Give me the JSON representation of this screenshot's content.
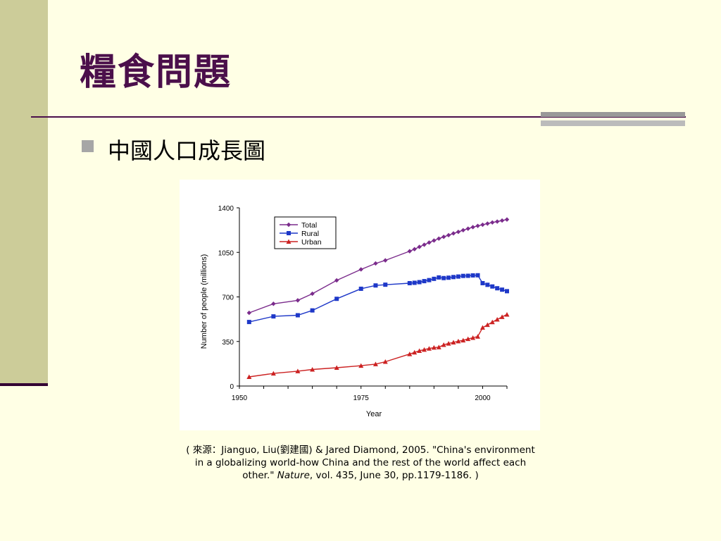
{
  "slide": {
    "title": "糧食問題",
    "bullet": "中國人口成長圖",
    "caption_part1": "( 來源：Jianguo, Liu(劉建國) & Jared Diamond, 2005. \"China's environment in a globalizing world-how China and the rest of the world affect each other.\" ",
    "caption_journal": "Nature",
    "caption_part2": ", vol. 435, June 30, pp.1179-1186. )"
  },
  "colors": {
    "background": "#FFFFE5",
    "side_band": "#CCCC99",
    "title": "#4B0F4B",
    "total": "#7B2C8C",
    "rural": "#1E38C8",
    "urban": "#CC2222"
  },
  "chart_data": {
    "type": "line",
    "xlabel": "Year",
    "ylabel": "Number of people (millions)",
    "xlim": [
      1950,
      2005
    ],
    "ylim": [
      0,
      1400
    ],
    "x_ticks": [
      1950,
      1975,
      2000
    ],
    "y_ticks": [
      0,
      350,
      700,
      1050,
      1400
    ],
    "legend_position": "top-left",
    "series": [
      {
        "name": "Total",
        "marker": "diamond",
        "points": [
          [
            1952,
            575
          ],
          [
            1957,
            646
          ],
          [
            1962,
            673
          ],
          [
            1965,
            725
          ],
          [
            1970,
            830
          ],
          [
            1975,
            916
          ],
          [
            1978,
            963
          ],
          [
            1980,
            987
          ],
          [
            1985,
            1059
          ],
          [
            1986,
            1075
          ],
          [
            1987,
            1093
          ],
          [
            1988,
            1110
          ],
          [
            1989,
            1127
          ],
          [
            1990,
            1143
          ],
          [
            1991,
            1158
          ],
          [
            1992,
            1172
          ],
          [
            1993,
            1185
          ],
          [
            1994,
            1199
          ],
          [
            1995,
            1211
          ],
          [
            1996,
            1224
          ],
          [
            1997,
            1236
          ],
          [
            1998,
            1248
          ],
          [
            1999,
            1258
          ],
          [
            2000,
            1267
          ],
          [
            2001,
            1276
          ],
          [
            2002,
            1285
          ],
          [
            2003,
            1292
          ],
          [
            2004,
            1300
          ],
          [
            2005,
            1308
          ]
        ]
      },
      {
        "name": "Rural",
        "marker": "square",
        "points": [
          [
            1952,
            503
          ],
          [
            1957,
            547
          ],
          [
            1962,
            556
          ],
          [
            1965,
            594
          ],
          [
            1970,
            685
          ],
          [
            1975,
            764
          ],
          [
            1978,
            790
          ],
          [
            1980,
            796
          ],
          [
            1985,
            808
          ],
          [
            1986,
            811
          ],
          [
            1987,
            816
          ],
          [
            1988,
            824
          ],
          [
            1989,
            832
          ],
          [
            1990,
            842
          ],
          [
            1991,
            853
          ],
          [
            1992,
            848
          ],
          [
            1993,
            851
          ],
          [
            1994,
            856
          ],
          [
            1995,
            860
          ],
          [
            1996,
            865
          ],
          [
            1997,
            866
          ],
          [
            1998,
            869
          ],
          [
            1999,
            870
          ],
          [
            2000,
            808
          ],
          [
            2001,
            795
          ],
          [
            2002,
            782
          ],
          [
            2003,
            768
          ],
          [
            2004,
            757
          ],
          [
            2005,
            745
          ]
        ]
      },
      {
        "name": "Urban",
        "marker": "triangle",
        "points": [
          [
            1952,
            72
          ],
          [
            1957,
            99
          ],
          [
            1962,
            117
          ],
          [
            1965,
            130
          ],
          [
            1970,
            144
          ],
          [
            1975,
            160
          ],
          [
            1978,
            172
          ],
          [
            1980,
            191
          ],
          [
            1985,
            251
          ],
          [
            1986,
            264
          ],
          [
            1987,
            277
          ],
          [
            1988,
            286
          ],
          [
            1989,
            295
          ],
          [
            1990,
            302
          ],
          [
            1991,
            305
          ],
          [
            1992,
            324
          ],
          [
            1993,
            334
          ],
          [
            1994,
            343
          ],
          [
            1995,
            352
          ],
          [
            1996,
            359
          ],
          [
            1997,
            370
          ],
          [
            1998,
            379
          ],
          [
            1999,
            389
          ],
          [
            2000,
            459
          ],
          [
            2001,
            481
          ],
          [
            2002,
            502
          ],
          [
            2003,
            523
          ],
          [
            2004,
            543
          ],
          [
            2005,
            562
          ]
        ]
      }
    ]
  }
}
